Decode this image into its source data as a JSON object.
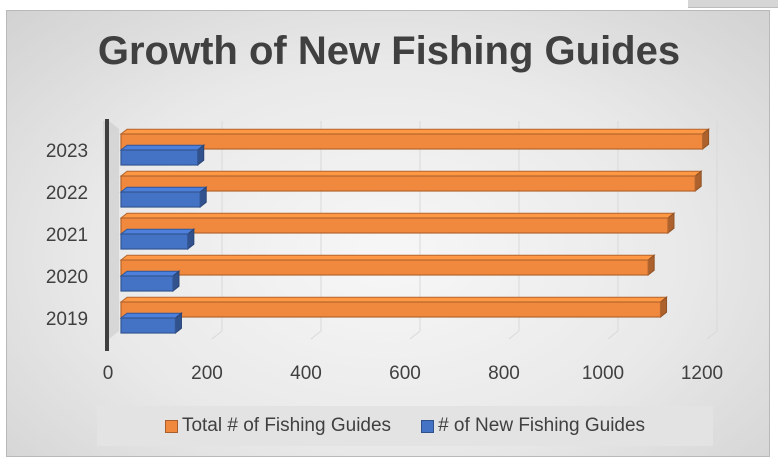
{
  "chart_data": {
    "type": "bar",
    "orientation": "horizontal",
    "title": "Growth of New Fishing Guides",
    "categories": [
      "2019",
      "2020",
      "2021",
      "2022",
      "2023"
    ],
    "series": [
      {
        "name": "Total # of Fishing Guides",
        "values": [
          1090,
          1065,
          1105,
          1160,
          1175
        ],
        "color": "#f0883e"
      },
      {
        "name": "# of New Fishing Guides",
        "values": [
          110,
          105,
          135,
          160,
          155
        ],
        "color": "#4472c4"
      }
    ],
    "xticks": [
      "0",
      "200",
      "400",
      "600",
      "800",
      "1000",
      "1200"
    ],
    "xlim": [
      0,
      1200
    ],
    "grid": true,
    "legend_position": "bottom",
    "style": "3d-clustered-bar"
  }
}
